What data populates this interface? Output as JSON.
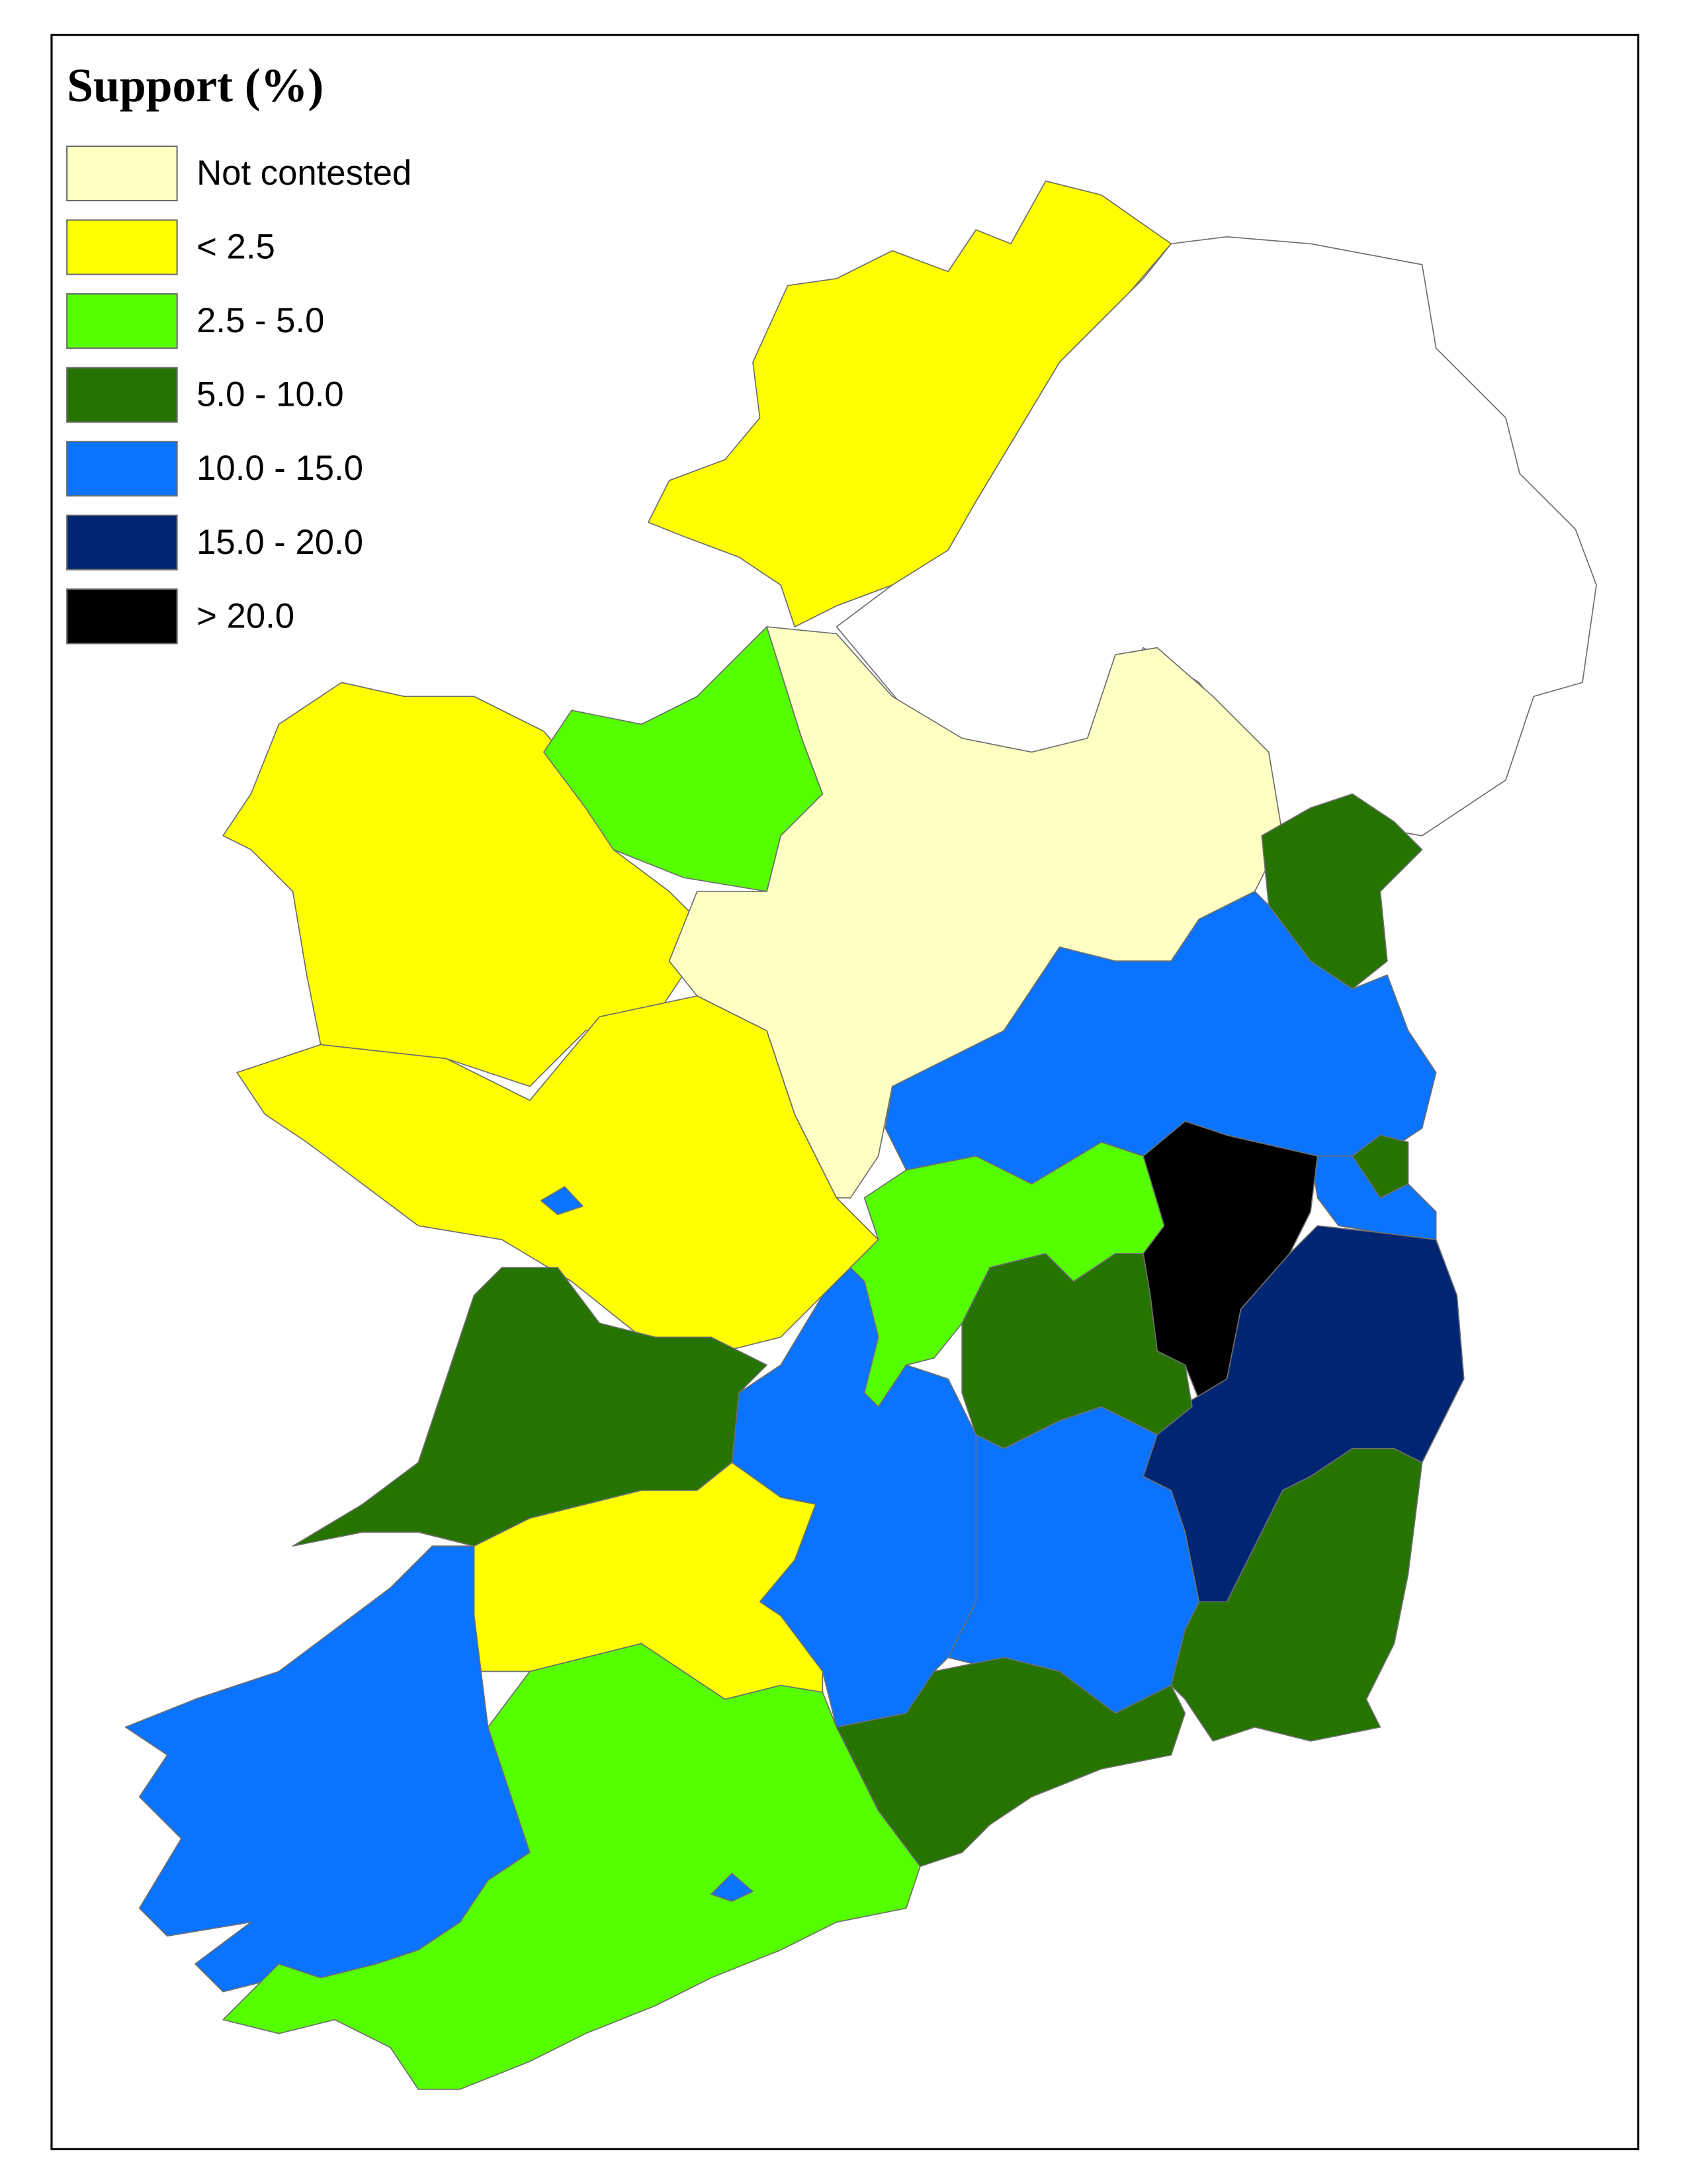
{
  "legend": {
    "title": "Support (%)",
    "items": [
      {
        "label": "Not contested",
        "color": "#ffffc4"
      },
      {
        "label": "< 2.5",
        "color": "#ffff00"
      },
      {
        "label": "2.5 - 5.0",
        "color": "#55ff00"
      },
      {
        "label": "5.0 - 10.0",
        "color": "#267300"
      },
      {
        "label": "10.0 - 15.0",
        "color": "#0a73ff"
      },
      {
        "label": "15.0 - 20.0",
        "color": "#002673"
      },
      {
        "label": "> 20.0",
        "color": "#000000"
      }
    ]
  }
}
